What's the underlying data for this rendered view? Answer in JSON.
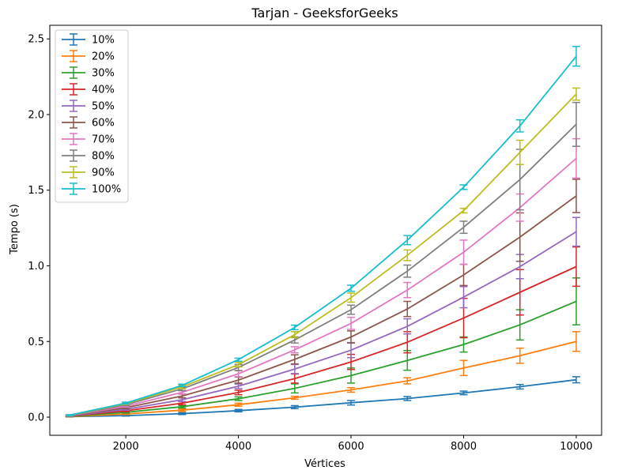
{
  "chart_data": {
    "type": "line",
    "title": "Tarjan - GeeksforGeeks",
    "xlabel": "Vértices",
    "ylabel": "Tempo (s)",
    "xlim": [
      650,
      10450
    ],
    "ylim": [
      -0.12,
      2.59
    ],
    "x": [
      1000,
      2000,
      3000,
      4000,
      5000,
      6000,
      7000,
      8000,
      9000,
      10000
    ],
    "x_ticks": [
      2000,
      4000,
      6000,
      8000,
      10000
    ],
    "x_tick_labels": [
      "2000",
      "4000",
      "6000",
      "8000",
      "10000"
    ],
    "y_ticks": [
      0.0,
      0.5,
      1.0,
      1.5,
      2.0,
      2.5
    ],
    "y_tick_labels": [
      "0.0",
      "0.5",
      "1.0",
      "1.5",
      "2.0",
      "2.5"
    ],
    "grid": false,
    "legend_position": "top-left",
    "series": [
      {
        "name": "10%",
        "color": "#1f77b4",
        "values": [
          0.003,
          0.01,
          0.023,
          0.043,
          0.066,
          0.095,
          0.123,
          0.16,
          0.201,
          0.247
        ],
        "errors": [
          0.002,
          0.003,
          0.006,
          0.008,
          0.01,
          0.015,
          0.013,
          0.012,
          0.015,
          0.02
        ]
      },
      {
        "name": "20%",
        "color": "#ff7f0e",
        "values": [
          0.004,
          0.021,
          0.046,
          0.082,
          0.128,
          0.18,
          0.24,
          0.325,
          0.406,
          0.5
        ],
        "errors": [
          0.002,
          0.004,
          0.008,
          0.01,
          0.01,
          0.015,
          0.02,
          0.05,
          0.05,
          0.065
        ]
      },
      {
        "name": "30%",
        "color": "#2ca02c",
        "values": [
          0.005,
          0.032,
          0.069,
          0.122,
          0.19,
          0.275,
          0.375,
          0.48,
          0.61,
          0.765
        ],
        "errors": [
          0.002,
          0.005,
          0.008,
          0.012,
          0.03,
          0.05,
          0.065,
          0.05,
          0.1,
          0.155
        ]
      },
      {
        "name": "40%",
        "color": "#d62728",
        "values": [
          0.006,
          0.042,
          0.092,
          0.163,
          0.255,
          0.365,
          0.495,
          0.655,
          0.825,
          0.995
        ],
        "errors": [
          0.002,
          0.006,
          0.01,
          0.015,
          0.03,
          0.05,
          0.07,
          0.13,
          0.15,
          0.13
        ]
      },
      {
        "name": "50%",
        "color": "#9467bd",
        "values": [
          0.007,
          0.052,
          0.115,
          0.204,
          0.318,
          0.443,
          0.6,
          0.793,
          0.995,
          1.225
        ],
        "errors": [
          0.003,
          0.006,
          0.012,
          0.015,
          0.03,
          0.05,
          0.05,
          0.07,
          0.08,
          0.095
        ]
      },
      {
        "name": "60%",
        "color": "#8c564b",
        "values": [
          0.008,
          0.062,
          0.14,
          0.245,
          0.382,
          0.53,
          0.715,
          0.94,
          1.19,
          1.462
        ],
        "errors": [
          0.003,
          0.006,
          0.012,
          0.02,
          0.03,
          0.04,
          0.05,
          0.07,
          0.16,
          0.11
        ]
      },
      {
        "name": "70%",
        "color": "#e377c2",
        "values": [
          0.009,
          0.072,
          0.164,
          0.287,
          0.445,
          0.62,
          0.84,
          1.09,
          1.385,
          1.71
        ],
        "errors": [
          0.003,
          0.006,
          0.012,
          0.02,
          0.02,
          0.04,
          0.05,
          0.08,
          0.09,
          0.13
        ]
      },
      {
        "name": "80%",
        "color": "#7f7f7f",
        "values": [
          0.01,
          0.082,
          0.187,
          0.328,
          0.51,
          0.71,
          0.965,
          1.255,
          1.57,
          1.935
        ],
        "errors": [
          0.003,
          0.006,
          0.012,
          0.02,
          0.02,
          0.03,
          0.04,
          0.04,
          0.2,
          0.145
        ]
      },
      {
        "name": "90%",
        "color": "#bcbd22",
        "values": [
          0.012,
          0.089,
          0.2,
          0.347,
          0.545,
          0.79,
          1.07,
          1.365,
          1.75,
          2.135
        ],
        "errors": [
          0.003,
          0.006,
          0.012,
          0.015,
          0.02,
          0.03,
          0.035,
          0.015,
          0.08,
          0.04
        ]
      },
      {
        "name": "100%",
        "color": "#17becf",
        "values": [
          0.013,
          0.093,
          0.21,
          0.38,
          0.593,
          0.852,
          1.17,
          1.52,
          1.925,
          2.385
        ],
        "errors": [
          0.003,
          0.006,
          0.008,
          0.01,
          0.015,
          0.02,
          0.03,
          0.015,
          0.04,
          0.065
        ]
      }
    ]
  }
}
